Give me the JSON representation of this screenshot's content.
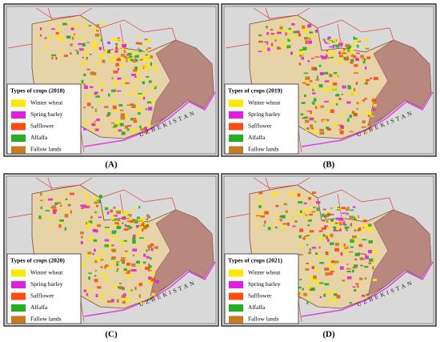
{
  "panels": [
    {
      "label": "(A)",
      "legend_title": "Types of crops (2018)",
      "country": "UZBEKISTAN"
    },
    {
      "label": "(B)",
      "legend_title": "Types of crops (2019)",
      "country": "UZBEKISTAN"
    },
    {
      "label": "(C)",
      "legend_title": "Types of crops (2020)",
      "country": "UZBEKISTAN"
    },
    {
      "label": "(D)",
      "legend_title": "Types of crops (2021)",
      "country": "UZBEKISTAN"
    }
  ],
  "legend": {
    "items": [
      {
        "label": "Winter wheat",
        "color": "#ffe800"
      },
      {
        "label": "Spring barley",
        "color": "#e020e0"
      },
      {
        "label": "Safflower",
        "color": "#ff4a10"
      },
      {
        "label": "Alfalfa",
        "color": "#20b020"
      },
      {
        "label": "Fallow lands",
        "color": "#c87a20"
      }
    ]
  }
}
